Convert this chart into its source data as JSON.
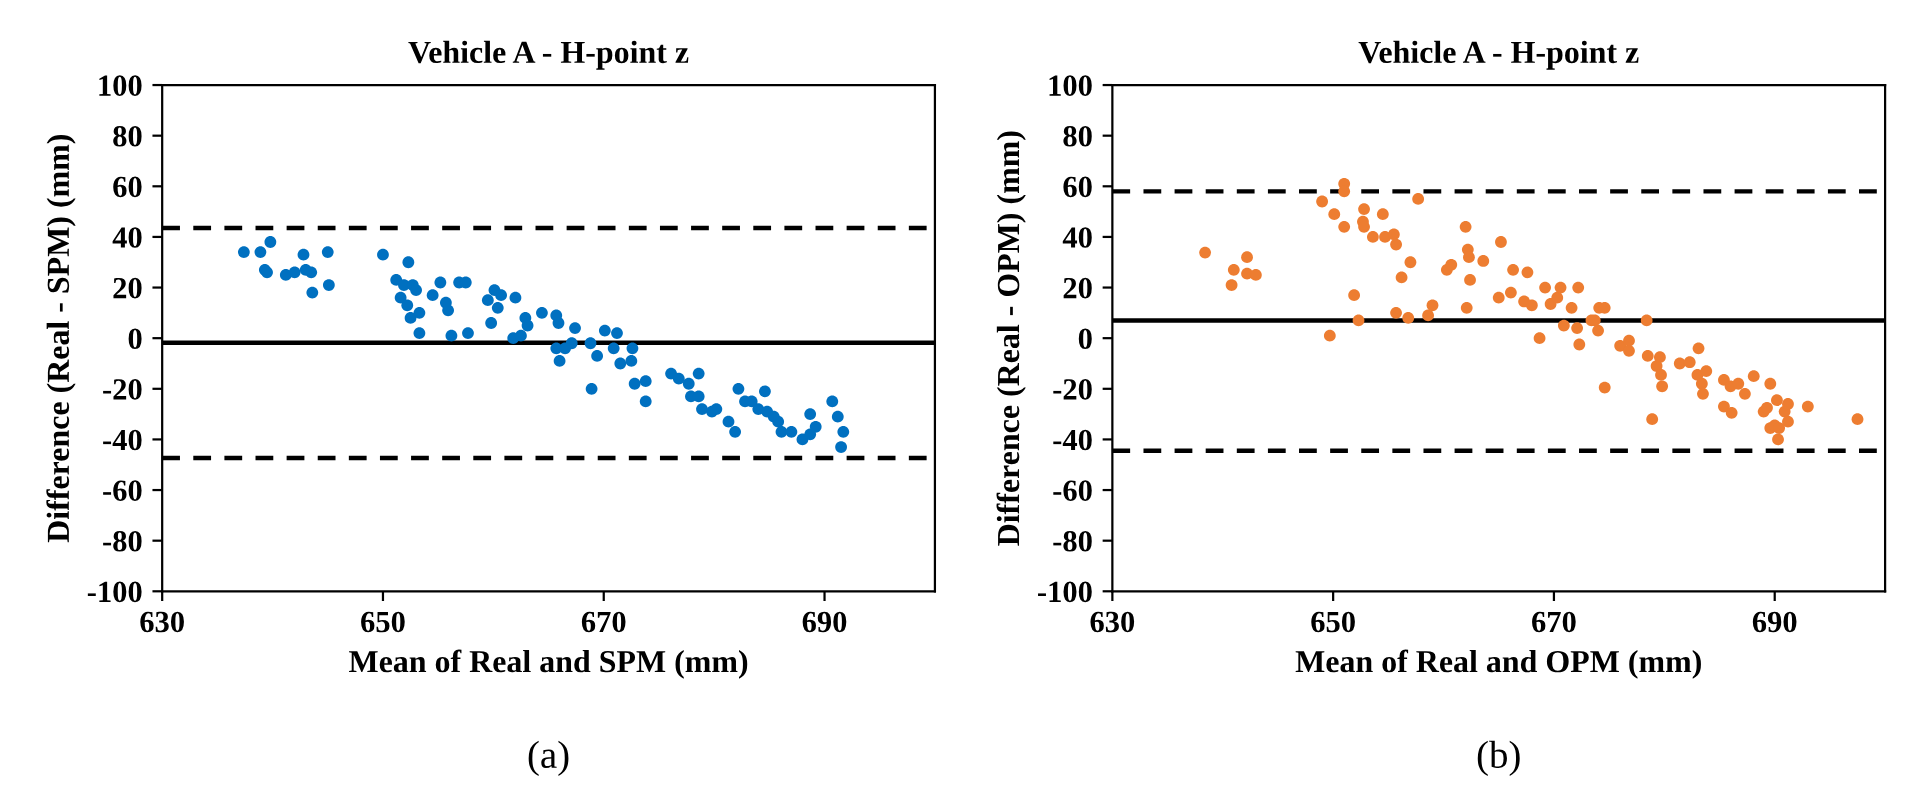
{
  "chart_data": [
    {
      "type": "scatter",
      "title": "Vehicle A - H-point z",
      "xlabel": "Mean of Real and SPM (mm)",
      "ylabel": "Difference (Real - SPM) (mm)",
      "annotations": [
        "(a)"
      ],
      "marker": "circle",
      "grid": false,
      "legend": false,
      "xlim": [
        630,
        700
      ],
      "xticks": [
        630,
        650,
        670,
        690
      ],
      "ylim": [
        -100,
        100
      ],
      "yticks": [
        -100,
        -80,
        -60,
        -40,
        -20,
        0,
        20,
        40,
        60,
        80,
        100
      ],
      "ref_lines": [
        {
          "axis": "y",
          "value": 43.5,
          "line_style": "dashed",
          "color": "#000000"
        },
        {
          "axis": "y",
          "value": -1.8,
          "line_style": "solid",
          "color": "#000000"
        },
        {
          "axis": "y",
          "value": -47.3,
          "line_style": "dashed",
          "color": "#000000"
        }
      ],
      "series": [
        {
          "color": "#0070c0",
          "x": [
            637.4,
            638.9,
            639.3,
            639.5,
            639.8,
            641.2,
            642,
            642.8,
            643,
            643.5,
            643.6,
            645,
            645.1,
            650,
            651.2,
            651.6,
            651.9,
            652.3,
            652.2,
            652.5,
            652.7,
            653,
            653.3,
            653.3,
            654.5,
            655.2,
            655.7,
            655.9,
            656.2,
            656.9,
            657.5,
            657.7,
            659.5,
            659.8,
            660.1,
            660.4,
            660.7,
            661.8,
            662,
            662.5,
            662.9,
            663.1,
            664.4,
            665.7,
            665.9,
            665.7,
            666,
            666.5,
            667.1,
            667.4,
            668.8,
            668.9,
            669.4,
            670.1,
            670.9,
            671.2,
            671.5,
            672.6,
            672.5,
            672.8,
            673.8,
            673.8,
            676.1,
            676.8,
            677.7,
            677.9,
            678.6,
            678.6,
            678.9,
            679.8,
            680.2,
            681.3,
            681.9,
            682.2,
            682.8,
            683.4,
            684,
            684.6,
            684.8,
            685.4,
            685.8,
            686.1,
            687,
            688,
            688.7,
            688.7,
            689.2,
            690.7,
            691.2,
            691.7,
            691.5
          ],
          "values": [
            34,
            34,
            27,
            26,
            38,
            25,
            26,
            33,
            27,
            26,
            18,
            34,
            21,
            33,
            23,
            16,
            21,
            30,
            13,
            8,
            21,
            19,
            10,
            2,
            17,
            22,
            14,
            11,
            1,
            22,
            22,
            2,
            15,
            6,
            19,
            12,
            17,
            0,
            16,
            1,
            8,
            5,
            10,
            9,
            6,
            -4,
            -9,
            -4,
            -2,
            4,
            -2,
            -20,
            -7,
            3,
            -4,
            2,
            -10,
            -4,
            -9,
            -18,
            -17,
            -25,
            -14,
            -16,
            -18,
            -23,
            -14,
            -23,
            -28,
            -29,
            -28,
            -33,
            -37,
            -20,
            -25,
            -25,
            -28,
            -21,
            -29,
            -31,
            -33,
            -37,
            -37,
            -40,
            -30,
            -38,
            -35,
            -25,
            -31,
            -37,
            -43
          ]
        }
      ]
    },
    {
      "type": "scatter",
      "title": "Vehicle A - H-point z",
      "xlabel": "Mean of Real and OPM (mm)",
      "ylabel": "Difference (Real - OPM) (mm)",
      "annotations": [
        "(b)"
      ],
      "marker": "circle",
      "grid": false,
      "legend": false,
      "xlim": [
        630,
        700
      ],
      "xticks": [
        630,
        650,
        670,
        690
      ],
      "ylim": [
        -100,
        100
      ],
      "yticks": [
        -100,
        -80,
        -60,
        -40,
        -20,
        0,
        20,
        40,
        60,
        80,
        100
      ],
      "ref_lines": [
        {
          "axis": "y",
          "value": 58,
          "line_style": "dashed",
          "color": "#000000"
        },
        {
          "axis": "y",
          "value": 7,
          "line_style": "solid",
          "color": "#000000"
        },
        {
          "axis": "y",
          "value": -44.5,
          "line_style": "dashed",
          "color": "#000000"
        }
      ],
      "series": [
        {
          "color": "#ed7d31",
          "x": [
            638.4,
            640.8,
            641.0,
            642.2,
            642.2,
            643.0,
            649.7,
            649.0,
            650.1,
            651.0,
            651.0,
            651.0,
            651.9,
            652.3,
            652.7,
            652.8,
            652.8,
            653.6,
            654.5,
            654.7,
            655.5,
            655.7,
            655.7,
            656.2,
            656.8,
            657.0,
            657.7,
            658.6,
            659.0,
            660.3,
            660.7,
            662.0,
            662.2,
            662.3,
            662.4,
            662.1,
            663.6,
            665.2,
            665.0,
            666.3,
            666.1,
            667.6,
            667.3,
            668.0,
            668.7,
            669.2,
            669.7,
            670.3,
            670.6,
            670.9,
            671.6,
            672.1,
            672.2,
            672.3,
            673.4,
            673.7,
            674.0,
            674.1,
            674.6,
            674.6,
            676.0,
            676.8,
            676.8,
            678.4,
            678.5,
            678.9,
            679.3,
            679.6,
            679.7,
            679.8,
            681.4,
            682.3,
            683.0,
            683.1,
            683.4,
            683.5,
            683.8,
            685.4,
            685.4,
            686.0,
            686.1,
            686.7,
            687.3,
            688.1,
            689.0,
            689.3,
            689.6,
            689.6,
            690.2,
            690.0,
            690.3,
            690.4,
            690.9,
            691.2,
            691.2,
            693.0,
            697.5
          ],
          "values": [
            33.8,
            21,
            27,
            32,
            25.5,
            25,
            1,
            54,
            49,
            61,
            58,
            44,
            17,
            7,
            46,
            51,
            44,
            40,
            49,
            40,
            41,
            37,
            10,
            24,
            8,
            30,
            55,
            9,
            13,
            27,
            29,
            44,
            35,
            32,
            23,
            12,
            30.5,
            38,
            16,
            27,
            18,
            26,
            14.5,
            13,
            0,
            20,
            13.5,
            16,
            20,
            5,
            12,
            4,
            20,
            -2.5,
            7,
            7,
            3,
            12,
            12,
            -19.5,
            -3,
            -1,
            -5,
            7,
            -7,
            -32,
            -11,
            -7.5,
            -14.5,
            -19,
            -10,
            -9.5,
            -14.5,
            -4,
            -18,
            -22,
            -13,
            -16.5,
            -27,
            -19,
            -29.5,
            -18,
            -22,
            -15,
            -29,
            -27.5,
            -18,
            -35.5,
            -24.5,
            -34.5,
            -40,
            -35.5,
            -29,
            -26,
            -33,
            -27,
            -32
          ]
        }
      ]
    }
  ]
}
